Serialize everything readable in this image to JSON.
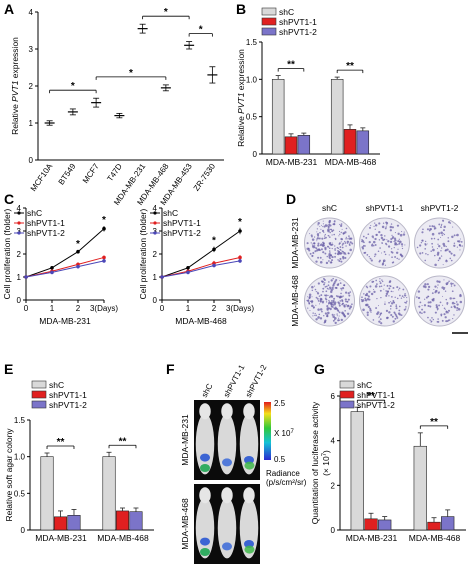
{
  "panels": {
    "A": "A",
    "B": "B",
    "C": "C",
    "D": "D",
    "E": "E",
    "F": "F",
    "G": "G"
  },
  "colors": {
    "shC": "#d9d9d9",
    "shPVT1-1": "#e02020",
    "shPVT1-2": "#7b74c9",
    "line_shC": "#000000",
    "line_sh1": "#e02020",
    "line_sh2": "#4b47b8"
  },
  "chart_data": [
    {
      "id": "A",
      "type": "scatter",
      "ylabel_pre": "Relative ",
      "ylabel_it": "PVT1",
      "ylabel_post": " expression",
      "ylim": [
        0,
        4
      ],
      "yticks": [
        "0",
        "1",
        "2",
        "3",
        "4"
      ],
      "categories": [
        "MCF10A",
        "BT549",
        "MCF7",
        "T47D",
        "MDA-MB-231",
        "MDA-MB-468",
        "MDA-MB-453",
        "ZR-7530"
      ],
      "values": [
        1.0,
        1.3,
        1.55,
        1.2,
        3.55,
        1.95,
        3.1,
        2.3
      ],
      "errors": [
        0.06,
        0.08,
        0.12,
        0.06,
        0.12,
        0.08,
        0.1,
        0.22
      ],
      "sig": [
        {
          "from": "MCF10A",
          "to": "MCF7",
          "label": "*"
        },
        {
          "from": "MCF7",
          "to": "MDA-MB-468",
          "label": "*"
        },
        {
          "from": "MDA-MB-231",
          "to": "MDA-MB-453",
          "label": "*"
        },
        {
          "from": "MDA-MB-453",
          "to": "ZR-7530",
          "label": "*"
        }
      ]
    },
    {
      "id": "B",
      "type": "bar",
      "ylabel_pre": "Relative ",
      "ylabel_it": "PVT1",
      "ylabel_post": "  expression",
      "ylim": [
        0,
        1.5
      ],
      "yticks": [
        "0",
        "0.5",
        "1.0",
        "1.5"
      ],
      "categories": [
        "MDA-MB-231",
        "MDA-MB-468"
      ],
      "series": [
        {
          "name": "shC",
          "values": [
            1.0,
            1.0
          ],
          "errors": [
            0.05,
            0.03
          ]
        },
        {
          "name": "shPVT1-1",
          "values": [
            0.23,
            0.33
          ],
          "errors": [
            0.04,
            0.06
          ]
        },
        {
          "name": "shPVT1-2",
          "values": [
            0.25,
            0.31
          ],
          "errors": [
            0.03,
            0.04
          ]
        }
      ],
      "sig": [
        "**",
        "**"
      ]
    },
    {
      "id": "C1",
      "type": "line",
      "ylabel": "Cell proliferation (folder)",
      "xlabel": "MDA-MB-231",
      "x": [
        0,
        1,
        2,
        3
      ],
      "xticks": [
        "0",
        "1",
        "2",
        "3(Days)"
      ],
      "ylim": [
        0,
        4
      ],
      "yticks": [
        "0",
        "1",
        "2",
        "3",
        "4"
      ],
      "series": [
        {
          "name": "shC",
          "values": [
            1.0,
            1.4,
            2.1,
            3.1
          ],
          "errors": [
            0.03,
            0.06,
            0.08,
            0.12
          ]
        },
        {
          "name": "shPVT1-1",
          "values": [
            1.0,
            1.25,
            1.55,
            1.85
          ],
          "errors": [
            0.03,
            0.05,
            0.07,
            0.08
          ]
        },
        {
          "name": "shPVT1-2",
          "values": [
            1.0,
            1.2,
            1.45,
            1.7
          ],
          "errors": [
            0.03,
            0.05,
            0.06,
            0.07
          ]
        }
      ],
      "stars": [
        {
          "x": 2,
          "label": "*"
        },
        {
          "x": 3,
          "label": "*"
        }
      ]
    },
    {
      "id": "C2",
      "type": "line",
      "ylabel": "Cell proliferation (folder)",
      "xlabel": "MDA-MB-468",
      "x": [
        0,
        1,
        2,
        3
      ],
      "xticks": [
        "0",
        "1",
        "2",
        "3(Days)"
      ],
      "ylim": [
        0,
        4
      ],
      "yticks": [
        "0",
        "1",
        "2",
        "3",
        "4"
      ],
      "series": [
        {
          "name": "shC",
          "values": [
            1.0,
            1.4,
            2.2,
            3.0
          ],
          "errors": [
            0.03,
            0.08,
            0.12,
            0.14
          ]
        },
        {
          "name": "shPVT1-1",
          "values": [
            1.0,
            1.25,
            1.6,
            1.85
          ],
          "errors": [
            0.03,
            0.06,
            0.1,
            0.1
          ]
        },
        {
          "name": "shPVT1-2",
          "values": [
            1.0,
            1.2,
            1.5,
            1.7
          ],
          "errors": [
            0.03,
            0.06,
            0.08,
            0.08
          ]
        }
      ],
      "stars": [
        {
          "x": 2,
          "label": "*"
        },
        {
          "x": 3,
          "label": "*"
        }
      ]
    },
    {
      "id": "E",
      "type": "bar",
      "ylabel": "Relative soft agar colony",
      "ylim": [
        0,
        1.5
      ],
      "yticks": [
        "0",
        "0.5",
        "1.0",
        "1.5"
      ],
      "categories": [
        "MDA-MB-231",
        "MDA-MB-468"
      ],
      "series": [
        {
          "name": "shC",
          "values": [
            1.0,
            1.0
          ],
          "errors": [
            0.05,
            0.06
          ]
        },
        {
          "name": "shPVT1-1",
          "values": [
            0.18,
            0.26
          ],
          "errors": [
            0.08,
            0.04
          ]
        },
        {
          "name": "shPVT1-2",
          "values": [
            0.2,
            0.25
          ],
          "errors": [
            0.08,
            0.05
          ]
        }
      ],
      "sig": [
        "**",
        "**"
      ]
    },
    {
      "id": "G",
      "type": "bar",
      "ylabel": "Quantitation of luciferase activity",
      "ylabel2": "(× 10",
      "ylabel2_sup": "7",
      "ylabel2_end": ")",
      "ylim": [
        0,
        6
      ],
      "yticks": [
        "0",
        "2",
        "4",
        "6"
      ],
      "categories": [
        "MDA-MB-231",
        "MDA-MB-468"
      ],
      "series": [
        {
          "name": "shC",
          "values": [
            5.3,
            3.75
          ],
          "errors": [
            0.2,
            0.6
          ]
        },
        {
          "name": "shPVT1-1",
          "values": [
            0.5,
            0.35
          ],
          "errors": [
            0.25,
            0.2
          ]
        },
        {
          "name": "shPVT1-2",
          "values": [
            0.45,
            0.6
          ],
          "errors": [
            0.15,
            0.3
          ]
        }
      ],
      "sig": [
        "**",
        "**"
      ]
    }
  ],
  "panelD": {
    "cols": [
      "shC",
      "shPVT1-1",
      "shPVT1-2"
    ],
    "rows": [
      "MDA-MB-231",
      "MDA-MB-468"
    ],
    "density": [
      [
        0.95,
        0.55,
        0.45
      ],
      [
        0.95,
        0.6,
        0.5
      ]
    ]
  },
  "panelF": {
    "cols": [
      "shC",
      "shPVT1-1",
      "shPVT1-2"
    ],
    "rows": [
      "MDA-MB-231",
      "MDA-MB-468"
    ],
    "scale_max": "2.5",
    "scale_min": "0.5",
    "scale_unit": "X 10",
    "scale_unit_sup": "7",
    "radiance_label": "Radiance",
    "radiance_unit": "(p/s/cm²/sr)"
  }
}
